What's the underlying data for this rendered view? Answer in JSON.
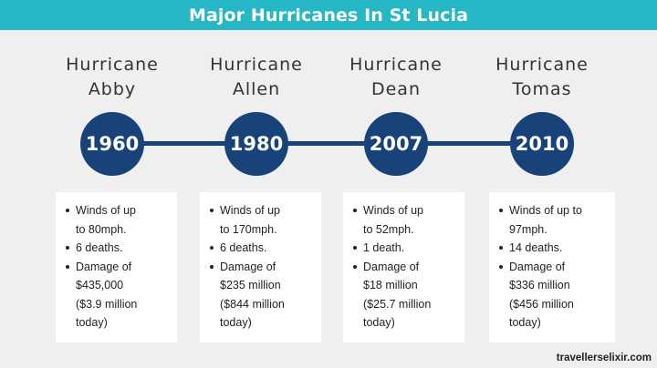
{
  "header": {
    "title": "Major Hurricanes In St Lucia"
  },
  "colors": {
    "banner": "#26b7c6",
    "timeline": "#17427a",
    "card": "#ffffff",
    "background": "#efefef"
  },
  "hurricanes": [
    {
      "name_line1": "Hurricane",
      "name_line2": "Abby",
      "year": "1960",
      "facts": [
        {
          "lines": [
            "Winds of up",
            "to 80mph."
          ]
        },
        {
          "lines": [
            "6 deaths."
          ]
        },
        {
          "lines": [
            "Damage of",
            "$435,000",
            "($3.9 million",
            "today)"
          ]
        }
      ]
    },
    {
      "name_line1": "Hurricane",
      "name_line2": "Allen",
      "year": "1980",
      "facts": [
        {
          "lines": [
            "Winds of up",
            "to 170mph."
          ]
        },
        {
          "lines": [
            "6 deaths."
          ]
        },
        {
          "lines": [
            "Damage of",
            "$235 million",
            "($844 million",
            "today)"
          ]
        }
      ]
    },
    {
      "name_line1": "Hurricane",
      "name_line2": "Dean",
      "year": "2007",
      "facts": [
        {
          "lines": [
            "Winds of up",
            "to 52mph."
          ]
        },
        {
          "lines": [
            "1 death."
          ]
        },
        {
          "lines": [
            "Damage of",
            "$18 million",
            "($25.7 million",
            "today)"
          ]
        }
      ]
    },
    {
      "name_line1": "Hurricane",
      "name_line2": "Tomas",
      "year": "2010",
      "facts": [
        {
          "lines": [
            "Winds of up to",
            "97mph."
          ]
        },
        {
          "lines": [
            "14 deaths."
          ]
        },
        {
          "lines": [
            "Damage of",
            "$336 million",
            "($456 million",
            "today)"
          ]
        }
      ]
    }
  ],
  "footer": {
    "credit": "travellerselixir.com"
  }
}
